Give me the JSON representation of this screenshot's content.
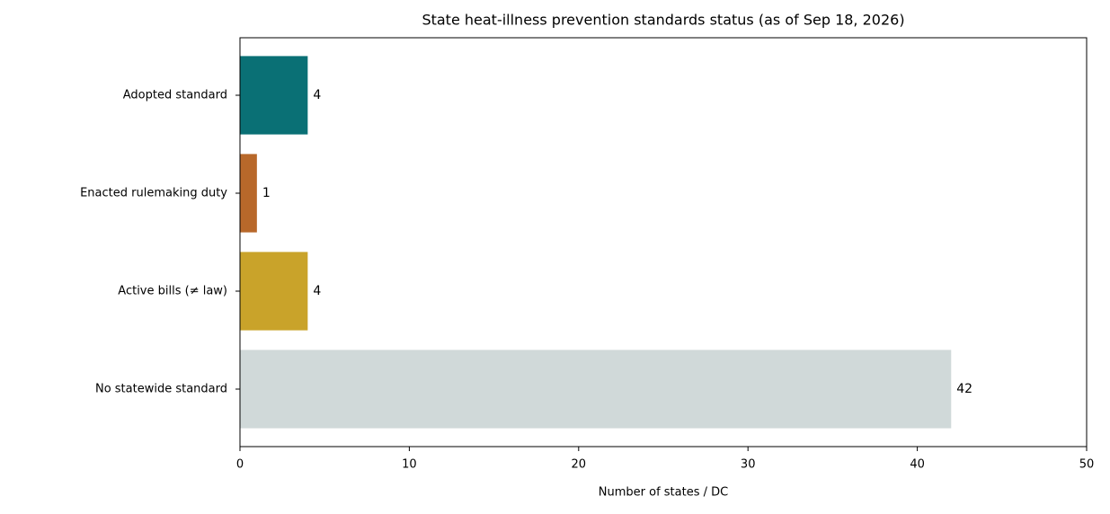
{
  "chart_data": {
    "type": "barh",
    "title": "State heat-illness prevention standards status (as of Sep 18, 2026)",
    "x_label": "Number of states / DC",
    "categories": [
      "Adopted standard",
      "Enacted rulemaking duty",
      "Active bills (≠ law)",
      "No statewide standard"
    ],
    "values": [
      4,
      1,
      4,
      42
    ],
    "colors": [
      "#0a7075",
      "#b8682a",
      "#c9a32a",
      "#d0d9d9"
    ],
    "xlim": [
      0,
      50
    ],
    "xticks": [
      0,
      10,
      20,
      30,
      40,
      50
    ],
    "grid": false
  }
}
